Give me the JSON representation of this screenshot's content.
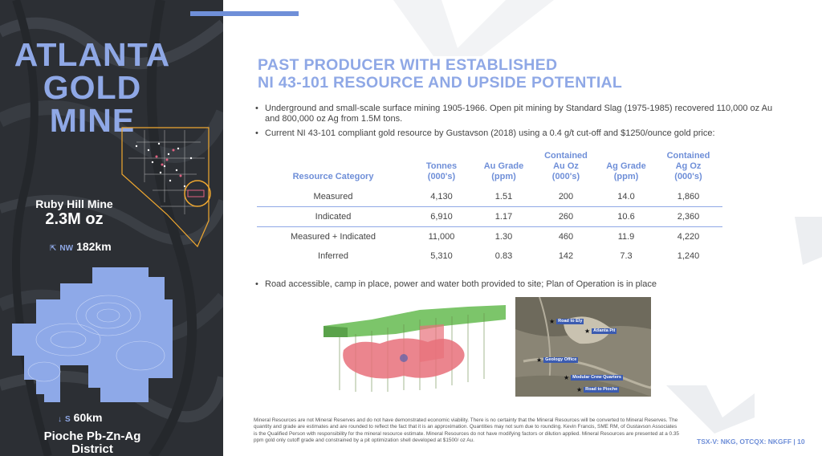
{
  "sidebar": {
    "title_line1": "ATLANTA",
    "title_line2": "GOLD MINE",
    "ruby_name": "Ruby Hill Mine",
    "ruby_oz": "2.3M oz",
    "ruby_dir": "NW",
    "ruby_distance": "182km",
    "pioche_dir": "S",
    "pioche_distance": "60km",
    "pioche_name_line1": "Pioche Pb-Zn-Ag",
    "pioche_name_line2": "District"
  },
  "heading": {
    "line1": "PAST PRODUCER WITH ESTABLISHED",
    "line2": "NI 43-101 RESOURCE AND UPSIDE POTENTIAL"
  },
  "bullets": [
    "Underground and small-scale surface mining 1905-1966. Open pit mining by Standard Slag (1975-1985) recovered 110,000 oz Au and 800,000 oz Ag from 1.5M tons.",
    "Current NI 43-101 compliant gold resource by Gustavson (2018) using a 0.4 g/t cut-off and $1250/ounce gold price:"
  ],
  "table": {
    "headers": [
      "Resource Category",
      "Tonnes (000's)",
      "Au Grade (ppm)",
      "Contained Au Oz (000's)",
      "Ag Grade (ppm)",
      "Contained Ag Oz (000's)"
    ],
    "rows": [
      [
        "Measured",
        "4,130",
        "1.51",
        "200",
        "14.0",
        "1,860"
      ],
      [
        "Indicated",
        "6,910",
        "1.17",
        "260",
        "10.6",
        "2,360"
      ],
      [
        "Measured + Indicated",
        "11,000",
        "1.30",
        "460",
        "11.9",
        "4,220"
      ],
      [
        "Inferred",
        "5,310",
        "0.83",
        "142",
        "7.3",
        "1,240"
      ]
    ]
  },
  "bullet3": "Road accessible, camp in place, power and water both provided to site; Plan of Operation is in place",
  "photo_labels": {
    "road_to_ely": "Road to Ely",
    "atlanta_pit": "Atlanta Pit",
    "geology_office": "Geology Office",
    "modular_crew": "Modular Crew Quarters",
    "road_to_pioche": "Road to Pioche"
  },
  "footnote": "Mineral Resources are not Mineral Reserves and do not have demonstrated economic viability. There is no certainty that the Mineral Resources will be converted to Mineral Reserves. The quantity and grade are estimates and are rounded to reflect the fact that it is an approximation. Quantities may not sum due to rounding. Kevin Francis, SME RM, of Gustavson Associates is the Qualified Person with responsibility for the mineral resource estimate. Mineral Resources do not have modifying factors or dilution applied. Mineral Resources are presented at a 0.35 ppm gold only cutoff grade and constrained by a pit optimization shell developed at $1500/ oz Au.",
  "footer_tag": "TSX-V: NKG, OTCQX: NKGFF | 10",
  "colors": {
    "accent": "#8fa8e6",
    "accent_dark": "#6f8fd8",
    "panel": "#2b2e33",
    "highlight": "#f0a830"
  }
}
